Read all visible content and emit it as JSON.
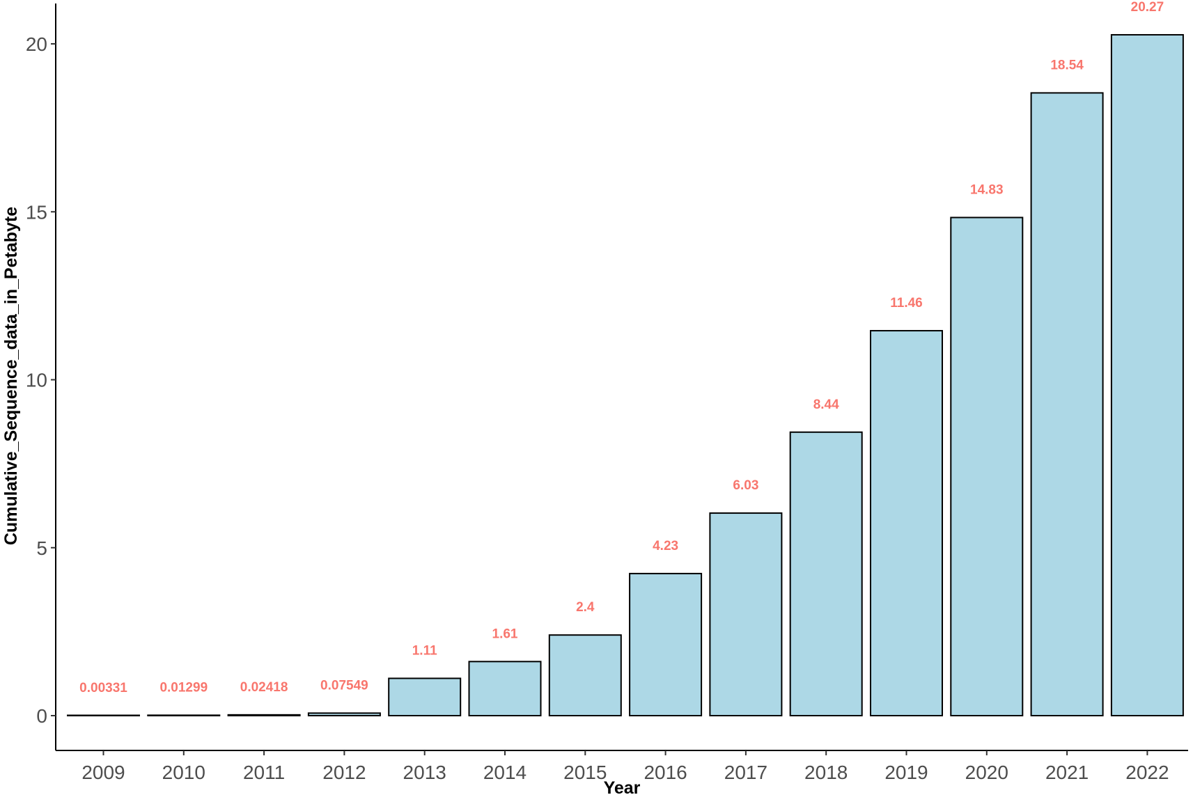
{
  "chart_data": {
    "type": "bar",
    "title": "",
    "xlabel": "Year",
    "ylabel": "Cumulative_Sequence_data_in_Petabyte",
    "categories": [
      "2009",
      "2010",
      "2011",
      "2012",
      "2013",
      "2014",
      "2015",
      "2016",
      "2017",
      "2018",
      "2019",
      "2020",
      "2021",
      "2022"
    ],
    "values": [
      0.00331,
      0.01299,
      0.02418,
      0.07549,
      1.11,
      1.61,
      2.4,
      4.23,
      6.03,
      8.44,
      11.46,
      14.83,
      18.54,
      20.27
    ],
    "data_labels": [
      "0.00331",
      "0.01299",
      "0.02418",
      "0.07549",
      "1.11",
      "1.61",
      "2.4",
      "4.23",
      "6.03",
      "8.44",
      "11.46",
      "14.83",
      "18.54",
      "20.27"
    ],
    "yticks": [
      0,
      5,
      10,
      15,
      20
    ],
    "ylim": [
      -1,
      21.2
    ],
    "grid": false,
    "legend": "none",
    "colors": {
      "bar_fill": "#ADD8E6",
      "bar_stroke": "#000000",
      "data_label": "#F8766D",
      "axis_line": "#000000",
      "tick_label": "#4d4d4d"
    }
  }
}
